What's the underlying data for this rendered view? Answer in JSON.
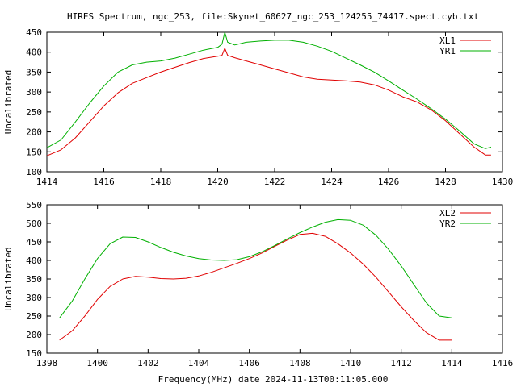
{
  "title": "HIRES Spectrum, ngc_253, file:Skynet_60627_ngc_253_124255_74417.spect.cyb.txt",
  "xlabel_bottom": "Frequency(MHz) date 2024-11-13T00:11:05.000",
  "colors": {
    "red": "#e00000",
    "green": "#00b000",
    "frame": "#000000"
  },
  "chart_data": [
    {
      "type": "line",
      "ylabel": "Uncalibrated",
      "xlim": [
        1414,
        1430
      ],
      "ylim": [
        100,
        450
      ],
      "xticks": [
        1414,
        1416,
        1418,
        1420,
        1422,
        1424,
        1426,
        1428,
        1430
      ],
      "yticks": [
        100,
        150,
        200,
        250,
        300,
        350,
        400,
        450
      ],
      "legend_position": "top-right",
      "series": [
        {
          "name": "XL1",
          "color": "#e00000",
          "points": [
            [
              1414.0,
              140
            ],
            [
              1414.5,
              155
            ],
            [
              1415.0,
              185
            ],
            [
              1415.5,
              225
            ],
            [
              1416.0,
              265
            ],
            [
              1416.5,
              298
            ],
            [
              1417.0,
              322
            ],
            [
              1417.5,
              336
            ],
            [
              1418.0,
              350
            ],
            [
              1418.5,
              362
            ],
            [
              1419.0,
              374
            ],
            [
              1419.5,
              384
            ],
            [
              1420.0,
              390
            ],
            [
              1420.15,
              392
            ],
            [
              1420.25,
              410
            ],
            [
              1420.35,
              392
            ],
            [
              1420.6,
              386
            ],
            [
              1421.0,
              378
            ],
            [
              1421.5,
              368
            ],
            [
              1422.0,
              358
            ],
            [
              1422.5,
              348
            ],
            [
              1423.0,
              338
            ],
            [
              1423.5,
              332
            ],
            [
              1424.0,
              330
            ],
            [
              1424.5,
              328
            ],
            [
              1425.0,
              325
            ],
            [
              1425.5,
              318
            ],
            [
              1426.0,
              305
            ],
            [
              1426.5,
              288
            ],
            [
              1427.0,
              275
            ],
            [
              1427.5,
              255
            ],
            [
              1428.0,
              228
            ],
            [
              1428.5,
              195
            ],
            [
              1429.0,
              162
            ],
            [
              1429.4,
              142
            ],
            [
              1429.6,
              142
            ]
          ]
        },
        {
          "name": "YR1",
          "color": "#00b000",
          "points": [
            [
              1414.0,
              160
            ],
            [
              1414.5,
              180
            ],
            [
              1415.0,
              225
            ],
            [
              1415.5,
              272
            ],
            [
              1416.0,
              315
            ],
            [
              1416.5,
              350
            ],
            [
              1417.0,
              368
            ],
            [
              1417.5,
              375
            ],
            [
              1418.0,
              378
            ],
            [
              1418.5,
              385
            ],
            [
              1419.0,
              395
            ],
            [
              1419.5,
              405
            ],
            [
              1420.0,
              412
            ],
            [
              1420.15,
              420
            ],
            [
              1420.25,
              450
            ],
            [
              1420.35,
              425
            ],
            [
              1420.6,
              418
            ],
            [
              1421.0,
              425
            ],
            [
              1421.5,
              428
            ],
            [
              1422.0,
              430
            ],
            [
              1422.5,
              430
            ],
            [
              1423.0,
              425
            ],
            [
              1423.5,
              415
            ],
            [
              1424.0,
              402
            ],
            [
              1424.5,
              385
            ],
            [
              1425.0,
              368
            ],
            [
              1425.5,
              350
            ],
            [
              1426.0,
              328
            ],
            [
              1426.5,
              305
            ],
            [
              1427.0,
              282
            ],
            [
              1427.5,
              258
            ],
            [
              1428.0,
              232
            ],
            [
              1428.5,
              202
            ],
            [
              1429.0,
              170
            ],
            [
              1429.4,
              158
            ],
            [
              1429.6,
              162
            ]
          ]
        }
      ]
    },
    {
      "type": "line",
      "ylabel": "Uncalibrated",
      "xlim": [
        1398,
        1416
      ],
      "ylim": [
        150,
        550
      ],
      "xticks": [
        1398,
        1400,
        1402,
        1404,
        1406,
        1408,
        1410,
        1412,
        1414,
        1416
      ],
      "yticks": [
        150,
        200,
        250,
        300,
        350,
        400,
        450,
        500,
        550
      ],
      "legend_position": "top-right",
      "series": [
        {
          "name": "XL2",
          "color": "#e00000",
          "points": [
            [
              1398.5,
              185
            ],
            [
              1399.0,
              210
            ],
            [
              1399.5,
              250
            ],
            [
              1400.0,
              295
            ],
            [
              1400.5,
              330
            ],
            [
              1401.0,
              350
            ],
            [
              1401.5,
              357
            ],
            [
              1402.0,
              355
            ],
            [
              1402.5,
              351
            ],
            [
              1403.0,
              350
            ],
            [
              1403.5,
              352
            ],
            [
              1404.0,
              358
            ],
            [
              1404.5,
              368
            ],
            [
              1405.0,
              380
            ],
            [
              1405.5,
              392
            ],
            [
              1406.0,
              405
            ],
            [
              1406.5,
              420
            ],
            [
              1407.0,
              438
            ],
            [
              1407.5,
              455
            ],
            [
              1408.0,
              470
            ],
            [
              1408.5,
              473
            ],
            [
              1409.0,
              465
            ],
            [
              1409.5,
              445
            ],
            [
              1410.0,
              420
            ],
            [
              1410.5,
              390
            ],
            [
              1411.0,
              355
            ],
            [
              1411.5,
              315
            ],
            [
              1412.0,
              275
            ],
            [
              1412.5,
              238
            ],
            [
              1413.0,
              205
            ],
            [
              1413.5,
              185
            ],
            [
              1414.0,
              185
            ]
          ]
        },
        {
          "name": "YR2",
          "color": "#00b000",
          "points": [
            [
              1398.5,
              245
            ],
            [
              1399.0,
              290
            ],
            [
              1399.5,
              350
            ],
            [
              1400.0,
              405
            ],
            [
              1400.5,
              445
            ],
            [
              1401.0,
              463
            ],
            [
              1401.5,
              462
            ],
            [
              1402.0,
              450
            ],
            [
              1402.5,
              435
            ],
            [
              1403.0,
              422
            ],
            [
              1403.5,
              412
            ],
            [
              1404.0,
              405
            ],
            [
              1404.5,
              401
            ],
            [
              1405.0,
              400
            ],
            [
              1405.5,
              402
            ],
            [
              1406.0,
              410
            ],
            [
              1406.5,
              423
            ],
            [
              1407.0,
              440
            ],
            [
              1407.5,
              458
            ],
            [
              1408.0,
              475
            ],
            [
              1408.5,
              490
            ],
            [
              1409.0,
              503
            ],
            [
              1409.5,
              510
            ],
            [
              1410.0,
              508
            ],
            [
              1410.5,
              495
            ],
            [
              1411.0,
              468
            ],
            [
              1411.5,
              430
            ],
            [
              1412.0,
              385
            ],
            [
              1412.5,
              335
            ],
            [
              1413.0,
              285
            ],
            [
              1413.5,
              250
            ],
            [
              1414.0,
              245
            ]
          ]
        }
      ]
    }
  ]
}
